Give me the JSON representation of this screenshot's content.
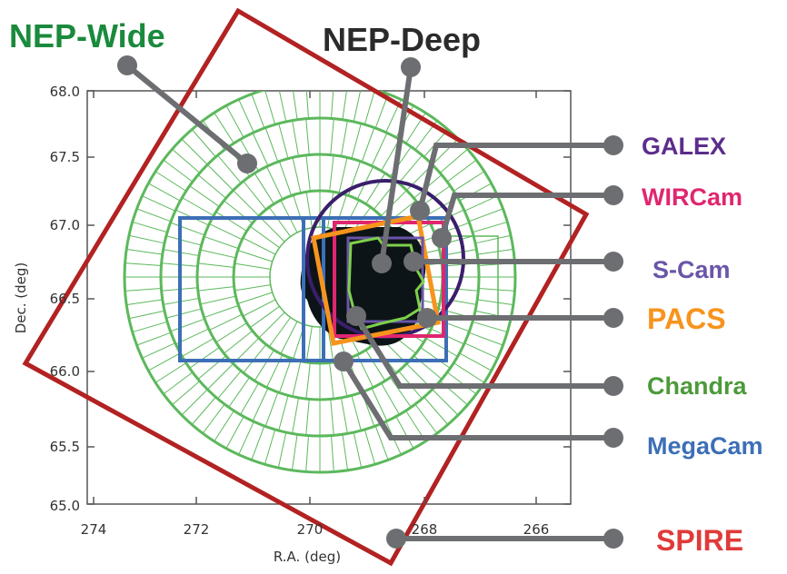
{
  "title_wide": "NEP-Wide",
  "title_deep": "NEP-Deep",
  "axes": {
    "xlabel": "R.A. (deg)",
    "ylabel": "Dec. (deg)",
    "x_ticks": [
      "274",
      "272",
      "270",
      "268",
      "266"
    ],
    "y_ticks": [
      "68.0",
      "67.5",
      "67.0",
      "66.5",
      "66.0",
      "65.5",
      "65.0"
    ]
  },
  "instruments": [
    {
      "name": "GALEX",
      "color": "#5b2d8c"
    },
    {
      "name": "WIRCam",
      "color": "#e0266f"
    },
    {
      "name": "S-Cam",
      "color": "#6a55a8"
    },
    {
      "name": "PACS",
      "color": "#f7941d"
    },
    {
      "name": "Chandra",
      "color": "#4c9a3a"
    },
    {
      "name": "MegaCam",
      "color": "#3d6fb6"
    },
    {
      "name": "SPIRE",
      "color": "#e03a3a"
    }
  ],
  "colors": {
    "wide": "#1a8a3c",
    "deep": "#2b2b2b",
    "spire_frame": "#b22222",
    "leader": "#6d6e71",
    "tiles": "#5cb85c"
  }
}
